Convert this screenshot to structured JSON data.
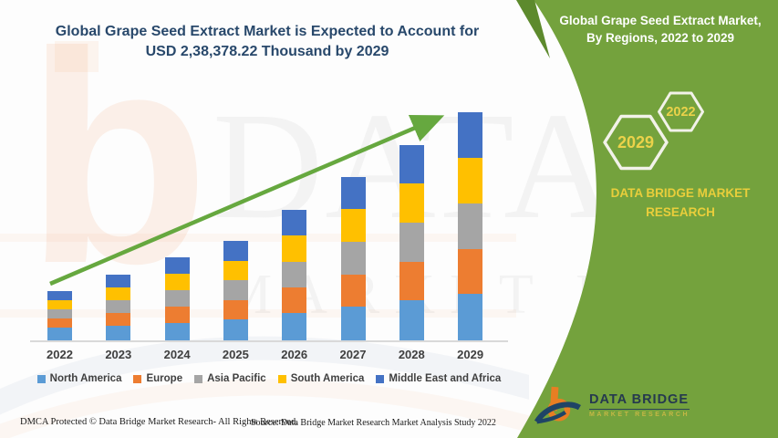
{
  "header": {
    "title_line1": "Global Grape Seed Extract Market is Expected to Account for",
    "title_line2": "USD 2,38,378.22 Thousand by 2029"
  },
  "panel": {
    "title_line1": "Global Grape Seed Extract Market,",
    "title_line2": "By Regions, 2022 to 2029",
    "hexagons": [
      {
        "label": "2029"
      },
      {
        "label": "2022"
      }
    ],
    "brand_line1": "DATA BRIDGE MARKET",
    "brand_line2": "RESEARCH",
    "logo_name": "DATA BRIDGE",
    "logo_subtitle": "MARKET RESEARCH",
    "colors": {
      "background": "#74A23D",
      "accent_dark_triangle": "#5D8A2D",
      "hex_border": "#F2F2E9",
      "text_yellow": "#E9CE3B",
      "title_white": "#FFFFFF"
    }
  },
  "chart_data": {
    "type": "bar",
    "stacked": true,
    "title": "Global Grape Seed Extract Market, By Regions, 2022 to 2029",
    "unit": "USD Thousand",
    "categories": [
      "2022",
      "2023",
      "2024",
      "2025",
      "2026",
      "2027",
      "2028",
      "2029"
    ],
    "series": [
      {
        "name": "North America",
        "color": "#5B9BD5",
        "values": [
          13300,
          15000,
          18000,
          21500,
          28300,
          35000,
          41500,
          48800
        ]
      },
      {
        "name": "Europe",
        "color": "#ED7D31",
        "values": [
          9700,
          13500,
          17200,
          20600,
          27000,
          34000,
          40700,
          46500
        ]
      },
      {
        "name": "Asia Pacific",
        "color": "#A5A5A5",
        "values": [
          9500,
          13600,
          17200,
          20500,
          27000,
          34100,
          40800,
          47300
        ]
      },
      {
        "name": "South America",
        "color": "#FFC000",
        "values": [
          9600,
          13400,
          17100,
          20600,
          27200,
          34000,
          40700,
          48200
        ]
      },
      {
        "name": "Middle East and Africa",
        "color": "#4472C4",
        "values": [
          9500,
          13300,
          17000,
          20400,
          26800,
          33800,
          40500,
          47578.22
        ]
      }
    ],
    "totals": [
      51600,
      68800,
      86500,
      103600,
      136300,
      170900,
      204200,
      238378.22
    ],
    "ylim": [
      0,
      238378.22
    ],
    "grid": false,
    "legend_position": "bottom",
    "trend_arrow": true,
    "trend_arrow_color": "#66A83F",
    "axis_color": "#D9D9D9"
  },
  "watermark": {
    "letter": "b",
    "line1": "DATA BRIDGE",
    "line2": "MARKET RESE"
  },
  "footer": {
    "left": "DMCA Protected © Data Bridge Market Research- All Rights Reserved.",
    "source": "Source: Data Bridge Market Research Market Analysis Study 2022"
  }
}
